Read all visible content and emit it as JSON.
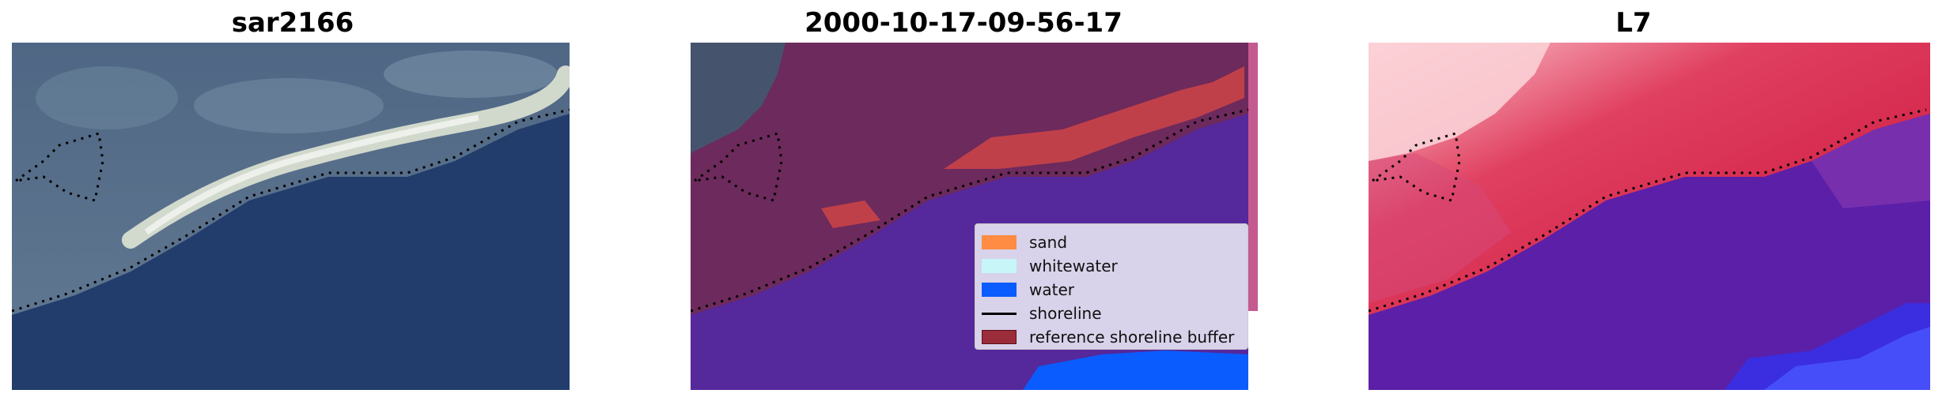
{
  "panels": [
    {
      "title": "sar2166"
    },
    {
      "title": "2000-10-17-09-56-17"
    },
    {
      "title": "L7"
    }
  ],
  "legend": {
    "items": [
      {
        "label": "sand",
        "color": "#ff8c42"
      },
      {
        "label": "whitewater",
        "color": "#c8f6f8"
      },
      {
        "label": "water",
        "color": "#0a5cff"
      },
      {
        "label": "shoreline",
        "color": "#000000"
      },
      {
        "label": "reference shoreline buffer",
        "color": "#9b2c3a"
      }
    ]
  },
  "colors": {
    "rgb_water": "#213c6b",
    "rgb_land": "#5a7189",
    "class_water": "#54289a",
    "class_land": "#6b2a5a",
    "class_sand": "#c0404a",
    "ndwi_land": "#d4193f",
    "ndwi_water": "#5b1fa8"
  }
}
